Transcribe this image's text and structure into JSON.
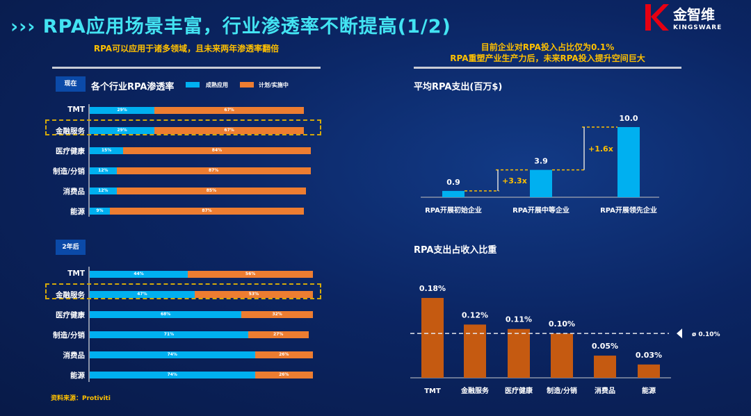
{
  "header": {
    "title": "RPA应用场景丰富，行业渗透率不断提高(1/2)",
    "chevron_icon": "triple-chevron-right",
    "logo_cn": "金智维",
    "logo_en": "KINGSWARE"
  },
  "left": {
    "subtitle": "RPA可以应用于诸多领域，且未来两年渗透率翻倍",
    "source": "资料来源：Protiviti"
  },
  "right": {
    "subtitle_1": "目前企业对RPA投入占比仅为0.1%",
    "subtitle_2": "RPA重塑产业生产力后，未来RPA投入提升空间巨大"
  },
  "colors": {
    "mature": "#00b0f0",
    "planned": "#ed7d31",
    "ratio_bar": "#c55a11",
    "highlight": "#d4a90a",
    "annotation": "#ffc000"
  },
  "chart_data": [
    {
      "type": "bar",
      "orientation": "horizontal",
      "stacked": true,
      "tag": "现在",
      "title": "各个行业RPA渗透率",
      "legend_placement": "top",
      "categories": [
        "TMT",
        "金融服务",
        "医疗健康",
        "制造/分销",
        "消费品",
        "能源"
      ],
      "highlighted": "金融服务",
      "series": [
        {
          "name": "成熟应用",
          "values": [
            29,
            29,
            15,
            12,
            12,
            9
          ]
        },
        {
          "name": "计划/实施中",
          "values": [
            67,
            67,
            84,
            87,
            85,
            87
          ]
        }
      ],
      "unit": "%"
    },
    {
      "type": "bar",
      "orientation": "horizontal",
      "stacked": true,
      "tag": "2年后",
      "categories": [
        "TMT",
        "金融服务",
        "医疗健康",
        "制造/分销",
        "消费品",
        "能源"
      ],
      "highlighted": "金融服务",
      "series": [
        {
          "values": [
            44,
            47,
            68,
            71,
            74,
            74
          ]
        },
        {
          "values": [
            56,
            53,
            32,
            27,
            26,
            26
          ]
        }
      ],
      "unit": "%"
    },
    {
      "type": "bar",
      "title": "平均RPA支出(百万$)",
      "categories": [
        "RPA开展初始企业",
        "RPA开展中等企业",
        "RPA开展领先企业"
      ],
      "values": [
        0.9,
        3.9,
        10.0
      ],
      "labels": [
        "0.9",
        "3.9",
        "10.0"
      ],
      "annotations": [
        "+3.3x",
        "+1.6x"
      ],
      "ylim": [
        0,
        10
      ]
    },
    {
      "type": "bar",
      "title": "RPA支出占收入比重",
      "categories": [
        "TMT",
        "金融服务",
        "医疗健康",
        "制造/分销",
        "消费品",
        "能源"
      ],
      "values": [
        0.18,
        0.12,
        0.11,
        0.1,
        0.05,
        0.03
      ],
      "labels": [
        "0.18%",
        "0.12%",
        "0.11%",
        "0.10%",
        "0.05%",
        "0.03%"
      ],
      "reference_line": {
        "value": 0.1,
        "label": "ø 0.10%"
      },
      "ylim": [
        0,
        0.18
      ]
    }
  ]
}
